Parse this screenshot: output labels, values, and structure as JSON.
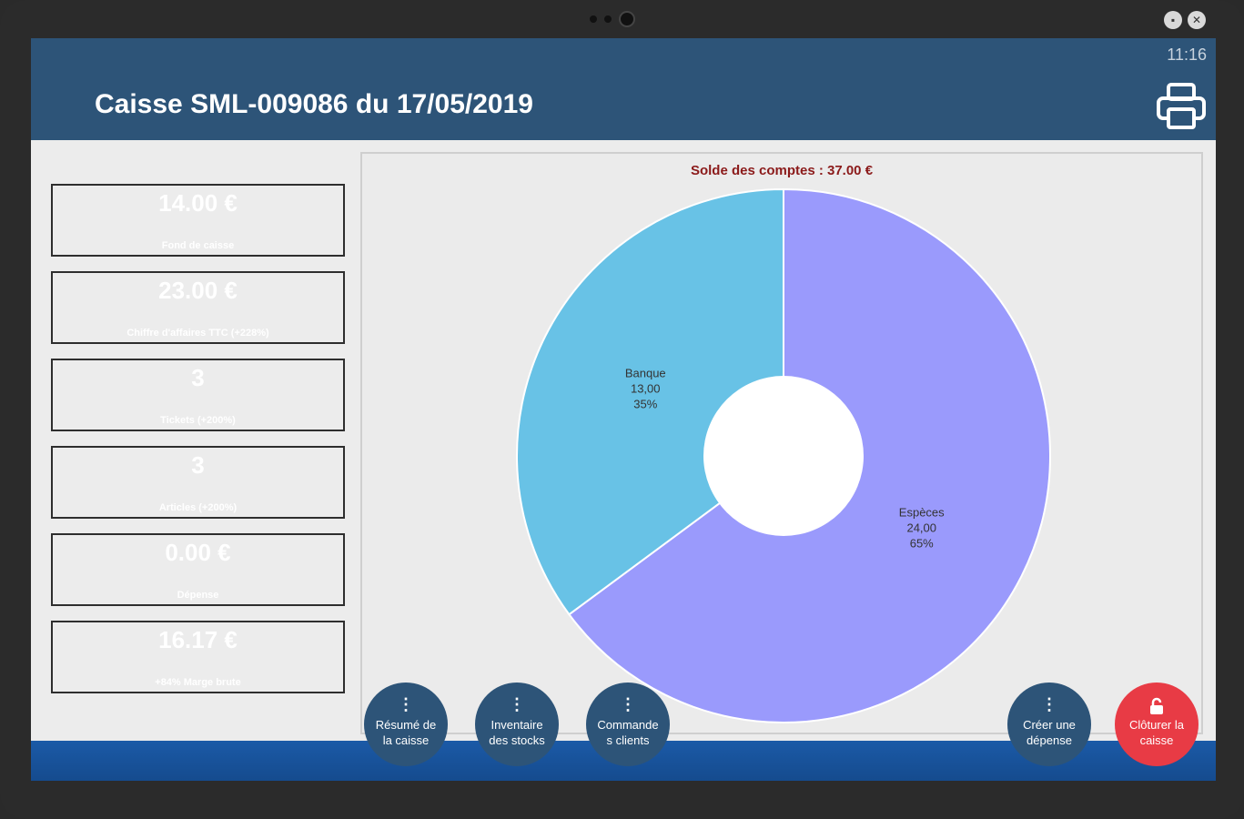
{
  "header": {
    "clock": "11:16",
    "title": "Caisse SML-009086 du 17/05/2019",
    "print_icon": "printer-icon"
  },
  "stats": [
    {
      "value": "14.00 €",
      "label": "Fond de caisse",
      "color": "#545454"
    },
    {
      "value": "23.00 €",
      "label": "Chiffre d'affaires TTC (+228%)",
      "color": "#088008"
    },
    {
      "value": "3",
      "label": "Tickets (+200%)",
      "color": "#088008"
    },
    {
      "value": "3",
      "label": "Articles (+200%)",
      "color": "#088008"
    },
    {
      "value": "0.00 €",
      "label": "Dépense",
      "color": "#545454"
    },
    {
      "value": "16.17 €",
      "label": "+84% Marge brute",
      "color": "#088008"
    }
  ],
  "chart_data": {
    "type": "pie",
    "title": "Solde des comptes :  37.00 €",
    "series": [
      {
        "name": "Banque",
        "value": 13.0,
        "value_label": "13,00",
        "percent_label": "35%",
        "color": "#68c2e6"
      },
      {
        "name": "Espèces",
        "value": 24.0,
        "value_label": "24,00",
        "percent_label": "65%",
        "color": "#9a9afc"
      }
    ],
    "donut": true
  },
  "actions": [
    {
      "label_line1": "Résumé de",
      "label_line2": "la caisse",
      "icon": "more-vertical-icon"
    },
    {
      "label_line1": "Inventaire",
      "label_line2": "des stocks",
      "icon": "more-vertical-icon"
    },
    {
      "label_line1": "Commande",
      "label_line2": "s clients",
      "icon": "more-vertical-icon"
    },
    {
      "label_line1": "Créer une",
      "label_line2": "dépense",
      "icon": "more-vertical-icon"
    },
    {
      "label_line1": "Clôturer la",
      "label_line2": "caisse",
      "icon": "lock-open-icon"
    }
  ],
  "window": {
    "minimize_icon": "minimize-icon",
    "close_icon": "close-icon"
  }
}
